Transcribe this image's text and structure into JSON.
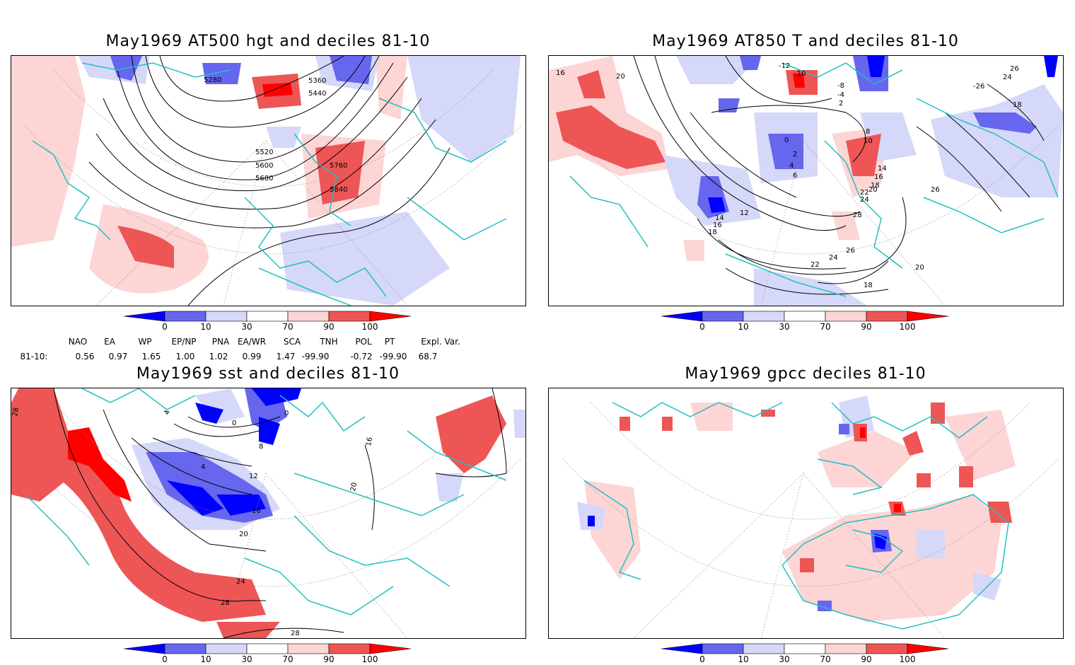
{
  "panels": [
    {
      "id": "hgt500",
      "title": "May1969 AT500 hgt and deciles 81-10",
      "contour_labels": [
        "5280",
        "5360",
        "5440",
        "5520",
        "5600",
        "5680",
        "5760",
        "5840"
      ]
    },
    {
      "id": "t850",
      "title": "May1969 AT850 T and deciles 81-10",
      "contour_labels": [
        "16",
        "20",
        "-12",
        "-10",
        "-8",
        "-4",
        "2",
        "26",
        "24",
        "-26",
        "18",
        "0",
        "2",
        "4",
        "6",
        "8",
        "10",
        "14",
        "16",
        "18",
        "20",
        "22",
        "24",
        "28",
        "12",
        "14",
        "16",
        "18",
        "26",
        "26",
        "24",
        "22",
        "20",
        "18"
      ]
    },
    {
      "id": "sst",
      "title": "May1969 sst and deciles 81-10",
      "contour_labels": [
        "28",
        "4",
        "0",
        "0",
        "8",
        "4",
        "12",
        "16",
        "20",
        "24",
        "28",
        "28",
        "16",
        "20"
      ]
    },
    {
      "id": "gpcc",
      "title": "May1969 gpcc deciles 81-10",
      "contour_labels": []
    }
  ],
  "colorbar": {
    "ticks": [
      "0",
      "10",
      "30",
      "70",
      "90",
      "100"
    ],
    "colors": [
      "#0000ff",
      "#6666ee",
      "#d5d8f8",
      "#ffffff",
      "#fdd5d5",
      "#ee5555",
      "#ff0000"
    ]
  },
  "indices": {
    "headers": [
      "NAO",
      "EA",
      "WP",
      "EP/NP",
      "PNA",
      "EA/WR",
      "SCA",
      "TNH",
      "POL",
      "PT",
      "Expl. Var."
    ],
    "row_label": "81-10:",
    "values": [
      "0.56",
      "0.97",
      "1.65",
      "1.00",
      "1.02",
      "0.99",
      "1.47",
      "-99.90",
      "-0.72",
      "-99.90",
      "68.7"
    ]
  },
  "colors": {
    "coast": "#22c0c0",
    "grid": "#888888",
    "contour": "#000000"
  }
}
